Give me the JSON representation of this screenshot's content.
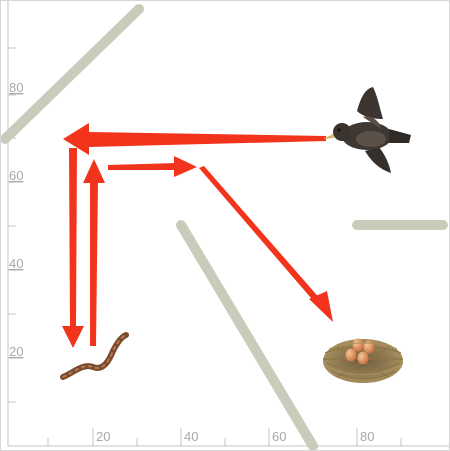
{
  "axes": {
    "x_ticks": [
      "20",
      "40",
      "60",
      "80"
    ],
    "y_ticks": [
      "80",
      "60",
      "40",
      "20"
    ]
  },
  "colors": {
    "background": "#ffffff",
    "border": "#d6d6d6",
    "axis": "#c4c4c4",
    "wall": "#c9cbbb",
    "arrow": "#f2341c"
  },
  "objects": {
    "bird": "flying-bird-icon",
    "worm": "worm-icon",
    "nest": "bird-nest-with-eggs-icon"
  },
  "arrows": [
    {
      "from": "bird",
      "to": "upper-left-corner"
    },
    {
      "from": "upper-left-corner",
      "to": "worm"
    },
    {
      "from": "worm",
      "to": "left-inner-corner"
    },
    {
      "from": "left-inner-corner",
      "to": "middle-point"
    },
    {
      "from": "middle-point",
      "to": "nest"
    }
  ]
}
